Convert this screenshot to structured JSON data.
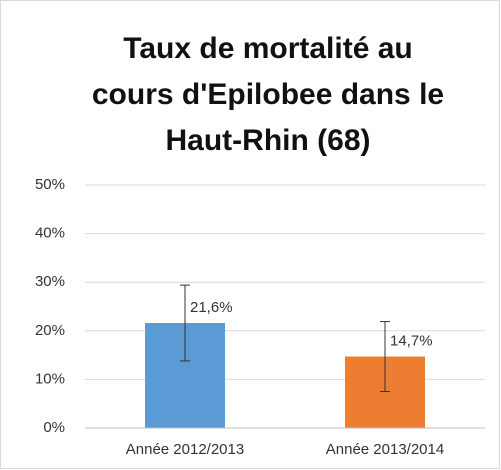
{
  "chart_data": {
    "type": "bar",
    "title": [
      "Taux de mortalité au",
      "cours d'Epilobee dans le",
      "Haut-Rhin (68)"
    ],
    "categories": [
      "Année 2012/2013",
      "Année 2013/2014"
    ],
    "values": [
      21.6,
      14.7
    ],
    "value_labels": [
      "21,6%",
      "14,7%"
    ],
    "errors": [
      7.8,
      7.2
    ],
    "colors": [
      "#5b9bd5",
      "#ed7d31"
    ],
    "ylim": [
      0,
      50
    ],
    "yticks": [
      {
        "value": 0,
        "label": "0%"
      },
      {
        "value": 10,
        "label": "10%"
      },
      {
        "value": 20,
        "label": "20%"
      },
      {
        "value": 30,
        "label": "30%"
      },
      {
        "value": 40,
        "label": "40%"
      },
      {
        "value": 50,
        "label": "50%"
      }
    ],
    "grid": true
  }
}
